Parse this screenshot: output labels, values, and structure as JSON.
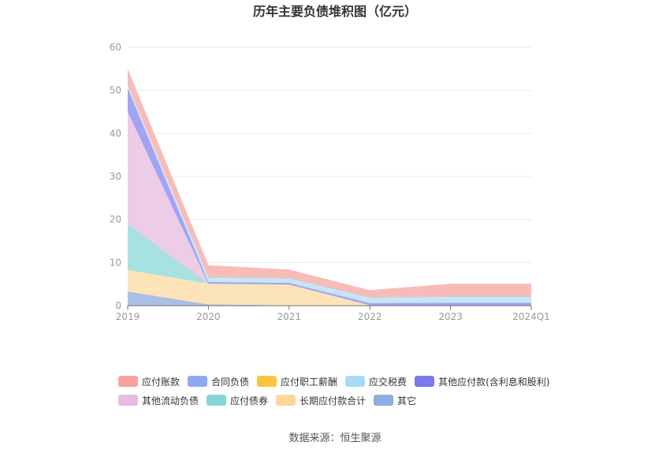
{
  "chart_data": {
    "type": "area",
    "title": "历年主要负债堆积图（亿元）",
    "categories": [
      "2019",
      "2020",
      "2021",
      "2022",
      "2023",
      "2024Q1"
    ],
    "ylim": [
      0,
      60
    ],
    "yticks": [
      0,
      10,
      20,
      30,
      40,
      50,
      60
    ],
    "grid": true,
    "legend_position": "bottom",
    "stacked": true,
    "series": [
      {
        "name": "其它",
        "color": "#a9bfe3",
        "values": [
          3.3,
          0.3,
          0.1,
          0.1,
          0.1,
          0.1
        ]
      },
      {
        "name": "长期应付款合计",
        "color": "#fde3b8",
        "values": [
          5.0,
          4.8,
          4.8,
          0.0,
          0.0,
          0.0
        ]
      },
      {
        "name": "应付债券",
        "color": "#a8e1e1",
        "values": [
          10.7,
          0.0,
          0.0,
          0.0,
          0.0,
          0.0
        ]
      },
      {
        "name": "其他流动负债",
        "color": "#eccce6",
        "values": [
          26.0,
          0.0,
          0.0,
          0.0,
          0.0,
          0.0
        ]
      },
      {
        "name": "其他应付款(含利息和股利)",
        "color": "#a3a3f5",
        "values": [
          5.5,
          0.4,
          0.4,
          0.5,
          0.6,
          0.6
        ]
      },
      {
        "name": "应交税费",
        "color": "#c4e6f8",
        "values": [
          0.6,
          0.9,
          0.9,
          1.1,
          1.2,
          1.2
        ]
      },
      {
        "name": "应付职工薪酬",
        "color": "#fde39c",
        "values": [
          0.1,
          0.1,
          0.1,
          0.1,
          0.1,
          0.1
        ]
      },
      {
        "name": "合同负债",
        "color": "#b5c7f5",
        "values": [
          0.0,
          0.2,
          0.2,
          0.2,
          0.2,
          0.2
        ]
      },
      {
        "name": "应付账款",
        "color": "#f8bcb8",
        "values": [
          3.8,
          2.7,
          1.9,
          1.6,
          2.9,
          2.9
        ]
      }
    ]
  },
  "legend": {
    "rows": [
      [
        {
          "name": "应付账款",
          "color": "#f8a39d"
        },
        {
          "name": "合同负债",
          "color": "#8ea9f4"
        },
        {
          "name": "应付职工薪酬",
          "color": "#fcc43d"
        },
        {
          "name": "应交税费",
          "color": "#a8dcf6"
        },
        {
          "name": "其他应付款(含利息和股利)",
          "color": "#7b78f0"
        }
      ],
      [
        {
          "name": "其他流动负债",
          "color": "#e6bcdf"
        },
        {
          "name": "应付债券",
          "color": "#86d7d4"
        },
        {
          "name": "长期应付款合计",
          "color": "#fdd79a"
        },
        {
          "name": "其它",
          "color": "#8faedb"
        }
      ]
    ]
  },
  "source": "数据来源：恒生聚源"
}
